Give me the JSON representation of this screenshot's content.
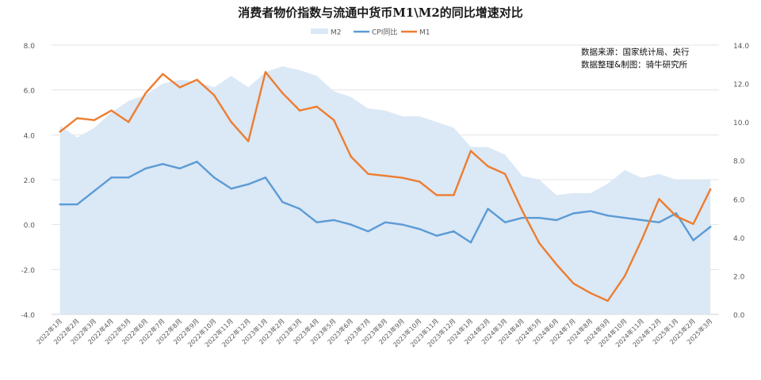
{
  "chart_data": {
    "type": "line",
    "title": "消费者物价指数与流通中货币M1\\M2的同比增速对比",
    "source_lines": [
      "数据来源：国家统计局、央行",
      "数据整理&制图：骑牛研究所"
    ],
    "legend_position": "top",
    "grid": true,
    "categories": [
      "2022年1月",
      "2022年2月",
      "2022年3月",
      "2022年4月",
      "2022年5月",
      "2022年6月",
      "2022年7月",
      "2022年8月",
      "2022年9月",
      "2022年10月",
      "2022年11月",
      "2022年12月",
      "2023年1月",
      "2023年2月",
      "2023年3月",
      "2023年4月",
      "2023年5月",
      "2023年6月",
      "2023年7月",
      "2023年8月",
      "2023年9月",
      "2023年10月",
      "2023年11月",
      "2023年12月",
      "2024年1月",
      "2024年2月",
      "2024年3月",
      "2024年4月",
      "2024年5月",
      "2024年6月",
      "2024年7月",
      "2024年8月",
      "2024年9月",
      "2024年10月",
      "2024年11月",
      "2024年12月",
      "2025年1月",
      "2025年2月",
      "2025年3月"
    ],
    "y_left": {
      "range": [
        -4.0,
        8.0
      ],
      "ticks": [
        "-4.0",
        "-2.0",
        "0.0",
        "2.0",
        "4.0",
        "6.0",
        "8.0"
      ]
    },
    "y_right": {
      "range": [
        0.0,
        14.0
      ],
      "ticks": [
        "0.0",
        "2.0",
        "4.0",
        "6.0",
        "8.0",
        "10.0",
        "12.0",
        "14.0"
      ]
    },
    "series": [
      {
        "name": "M2",
        "kind": "area",
        "axis": "right",
        "color": "#dbe8f5",
        "values": [
          9.8,
          9.2,
          9.7,
          10.5,
          11.1,
          11.4,
          12.0,
          12.2,
          12.1,
          11.8,
          12.4,
          11.8,
          12.6,
          12.9,
          12.7,
          12.4,
          11.6,
          11.3,
          10.7,
          10.6,
          10.3,
          10.3,
          10.0,
          9.7,
          8.7,
          8.7,
          8.3,
          7.2,
          7.0,
          6.2,
          6.3,
          6.3,
          6.8,
          7.5,
          7.1,
          7.3,
          7.0,
          7.0,
          7.0
        ]
      },
      {
        "name": "CPI同比",
        "kind": "line",
        "axis": "left",
        "color": "#5b9bd5",
        "values": [
          0.9,
          0.9,
          1.5,
          2.1,
          2.1,
          2.5,
          2.7,
          2.5,
          2.8,
          2.1,
          1.6,
          1.8,
          2.1,
          1.0,
          0.7,
          0.1,
          0.2,
          0.0,
          -0.3,
          0.1,
          0.0,
          -0.2,
          -0.5,
          -0.3,
          -0.8,
          0.7,
          0.1,
          0.3,
          0.3,
          0.2,
          0.5,
          0.6,
          0.4,
          0.3,
          0.2,
          0.1,
          0.5,
          -0.7,
          -0.1
        ]
      },
      {
        "name": "M1",
        "kind": "line",
        "axis": "right",
        "color": "#ed7d31",
        "values": [
          9.5,
          10.2,
          10.1,
          10.6,
          10.0,
          11.5,
          12.5,
          11.8,
          12.2,
          11.4,
          10.0,
          9.0,
          12.6,
          11.5,
          10.6,
          10.8,
          10.1,
          8.2,
          7.3,
          7.2,
          7.1,
          6.9,
          6.2,
          6.2,
          8.5,
          7.7,
          7.3,
          5.4,
          3.7,
          2.6,
          1.6,
          1.1,
          0.7,
          2.0,
          3.9,
          6.0,
          5.1,
          4.7,
          6.5
        ]
      }
    ]
  }
}
